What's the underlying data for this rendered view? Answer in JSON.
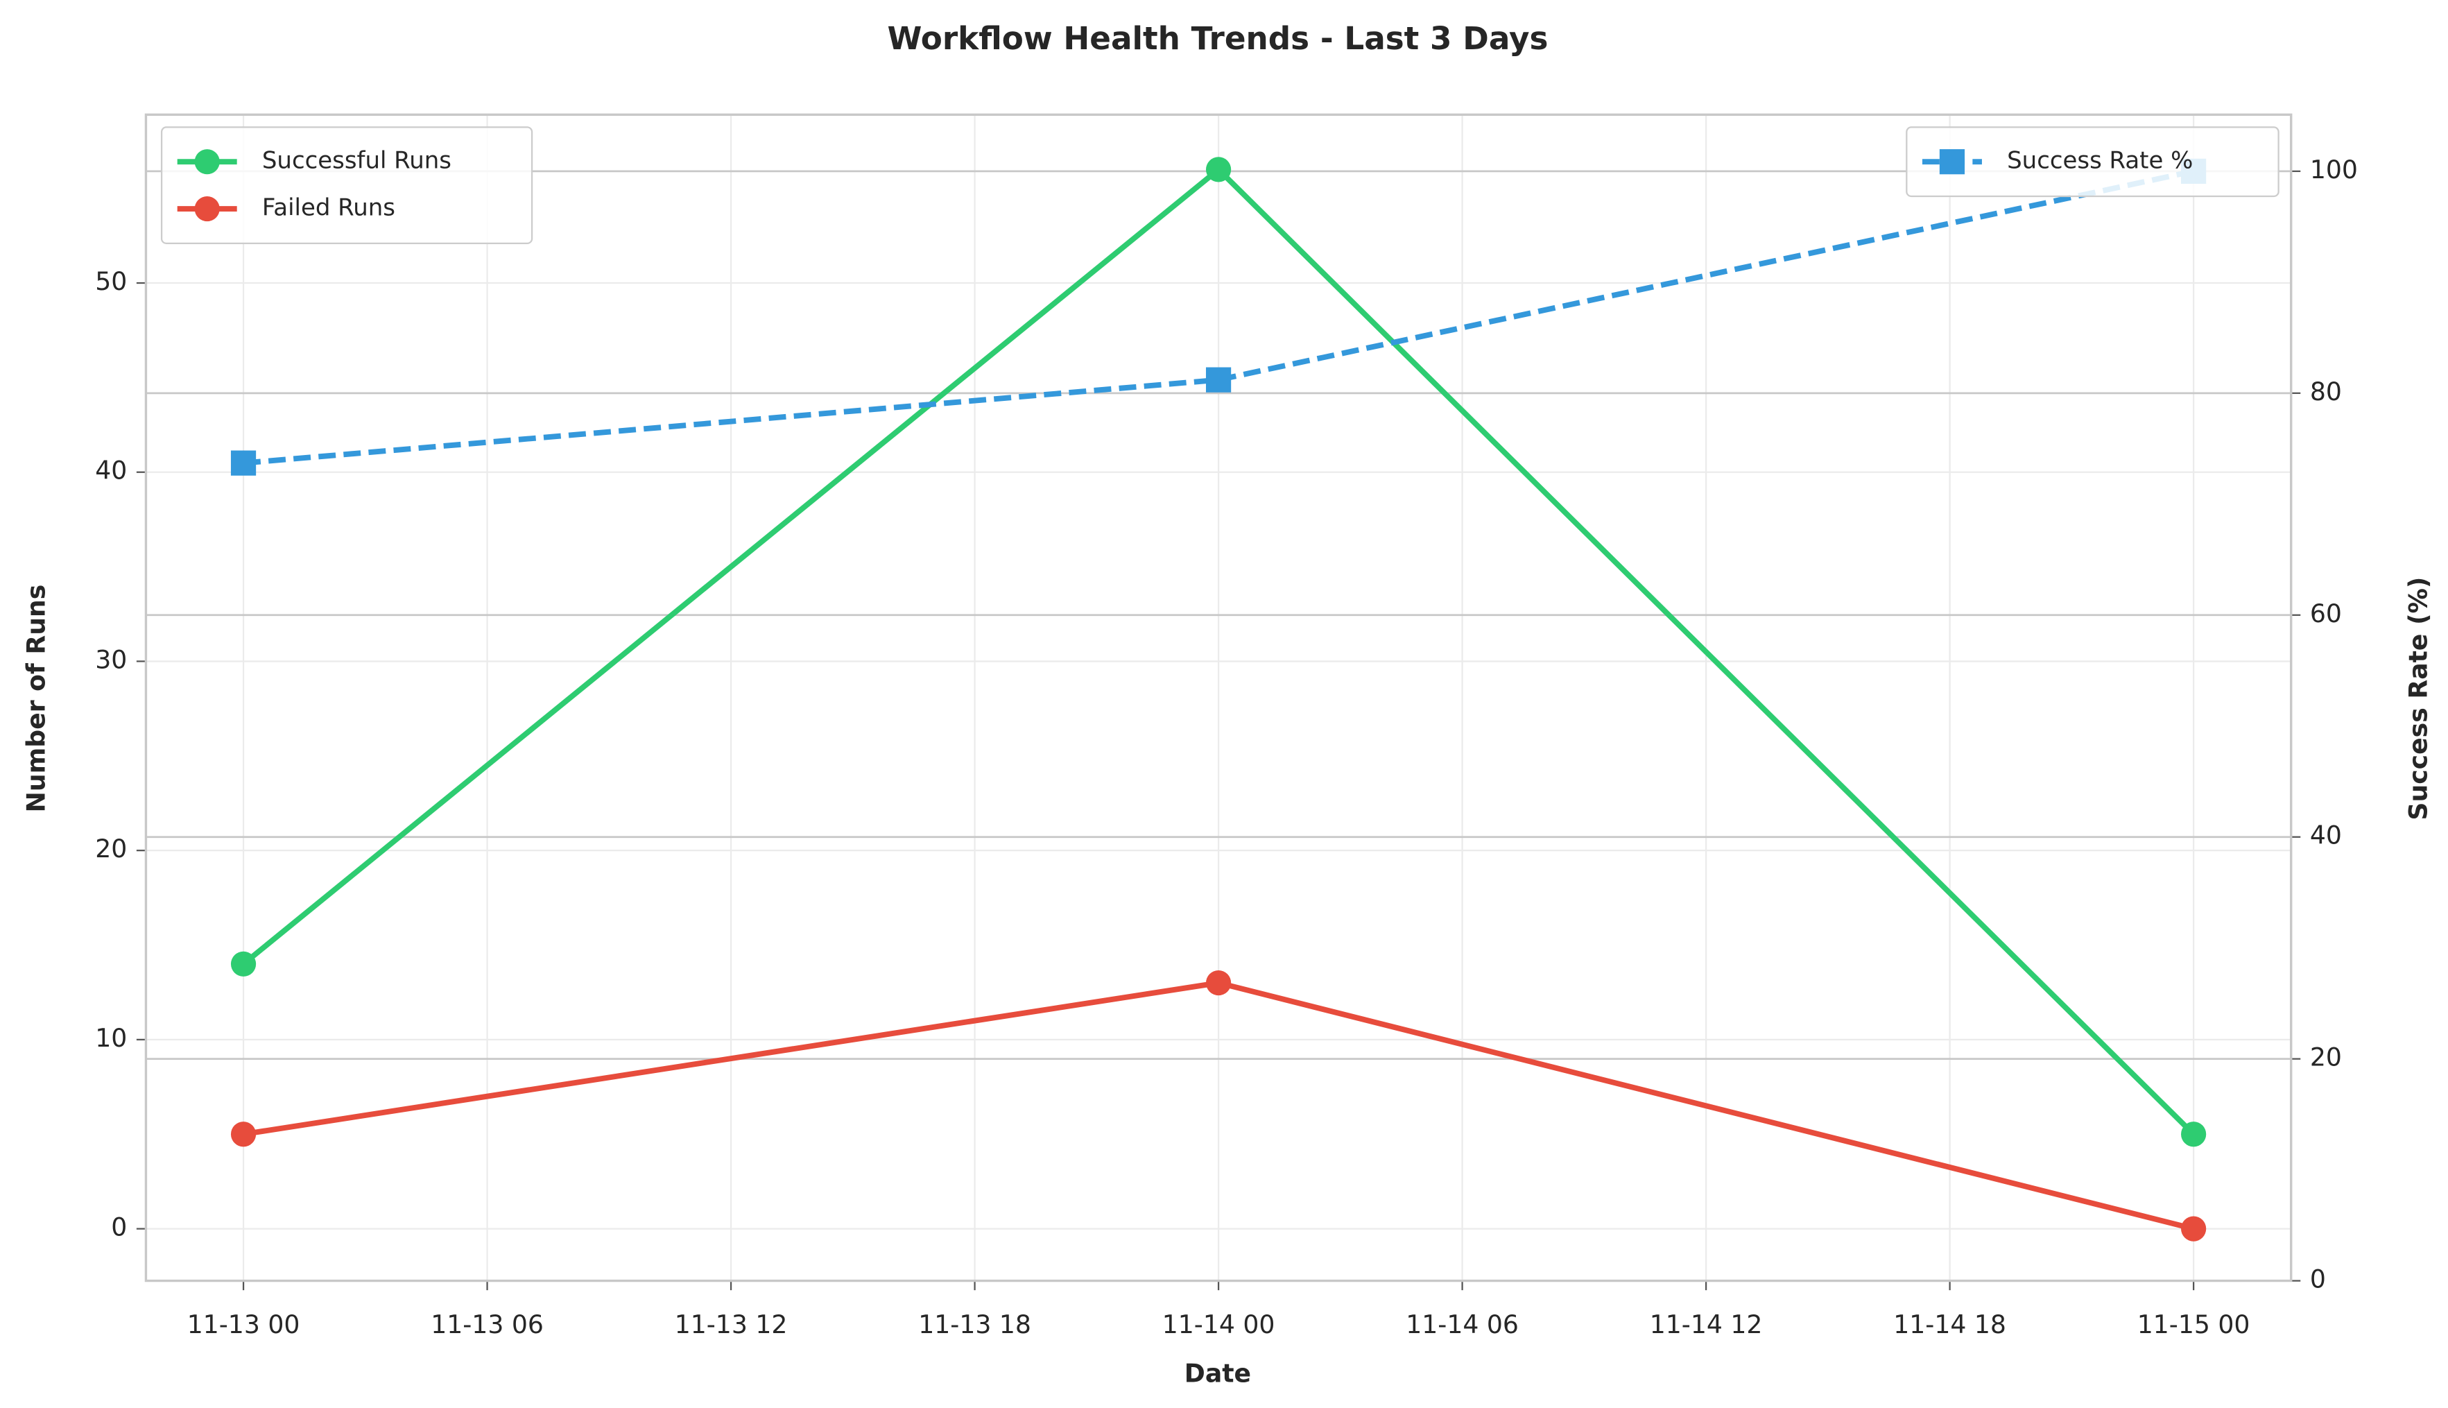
{
  "chart_data": {
    "type": "line",
    "title": "Workflow Health Trends - Last 3 Days",
    "x_label": "Date",
    "y_label": "Number of Runs",
    "y2_label": "Success Rate (%)",
    "x": [
      0,
      24,
      48
    ],
    "xlim": [
      -2.4,
      50.4
    ],
    "xticks": [
      {
        "value": 0,
        "label": "11-13 00"
      },
      {
        "value": 6,
        "label": "11-13 06"
      },
      {
        "value": 12,
        "label": "11-13 12"
      },
      {
        "value": 18,
        "label": "11-13 18"
      },
      {
        "value": 24,
        "label": "11-14 00"
      },
      {
        "value": 30,
        "label": "11-14 06"
      },
      {
        "value": 36,
        "label": "11-14 12"
      },
      {
        "value": 42,
        "label": "11-14 18"
      },
      {
        "value": 48,
        "label": "11-15 00"
      }
    ],
    "ylim": [
      -2.75,
      58.9
    ],
    "yticks": [
      0,
      10,
      20,
      30,
      40,
      50
    ],
    "y2lim": [
      0,
      105.1
    ],
    "y2ticks": [
      0,
      20,
      40,
      60,
      80,
      100
    ],
    "grid": true,
    "series": [
      {
        "name": "Successful Runs",
        "color": "#2ecc71",
        "values": [
          14,
          56,
          5
        ],
        "marker": "circle",
        "linestyle": "solid"
      },
      {
        "name": "Failed Runs",
        "color": "#e74c3c",
        "values": [
          5,
          13,
          0
        ],
        "marker": "circle",
        "linestyle": "solid"
      },
      {
        "name": "Success Rate %",
        "color": "#3498db",
        "values": [
          73.7,
          81.2,
          100
        ],
        "marker": "square",
        "linestyle": "dashed",
        "axis": "y2"
      }
    ],
    "legend": "upper left",
    "legend2": "upper right"
  }
}
